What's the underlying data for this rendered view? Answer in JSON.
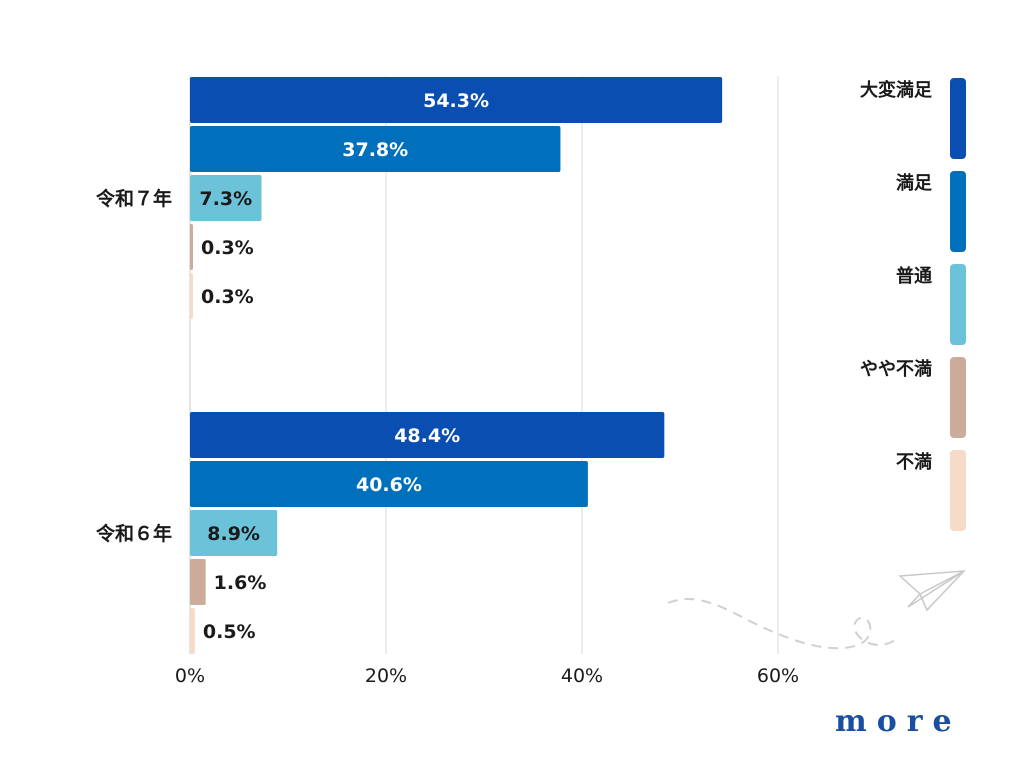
{
  "chart_data": {
    "type": "bar",
    "orientation": "horizontal",
    "groups": [
      {
        "label": "令和７年",
        "values": [
          54.3,
          37.8,
          7.3,
          0.3,
          0.3
        ],
        "value_labels": [
          "54.3%",
          "37.8%",
          "7.3%",
          "0.3%",
          "0.3%"
        ]
      },
      {
        "label": "令和６年",
        "values": [
          48.4,
          40.6,
          8.9,
          1.6,
          0.5
        ],
        "value_labels": [
          "48.4%",
          "40.6%",
          "8.9%",
          "1.6%",
          "0.5%"
        ]
      }
    ],
    "series": [
      {
        "name": "大変満足",
        "color": "#0a4eb1"
      },
      {
        "name": "満足",
        "color": "#0070bc"
      },
      {
        "name": "普通",
        "color": "#6cc2d9"
      },
      {
        "name": "やや不満",
        "color": "#cbab9a"
      },
      {
        "name": "不満",
        "color": "#f6dcc8"
      }
    ],
    "xlim": [
      0,
      60
    ],
    "xticks": [
      0,
      20,
      40,
      60
    ],
    "xtick_labels": [
      "0%",
      "20%",
      "40%",
      "60%"
    ],
    "grid": true,
    "legend_position": "right"
  },
  "logo": {
    "text": "more"
  },
  "icons": {
    "decoration": "paper-plane-icon"
  }
}
